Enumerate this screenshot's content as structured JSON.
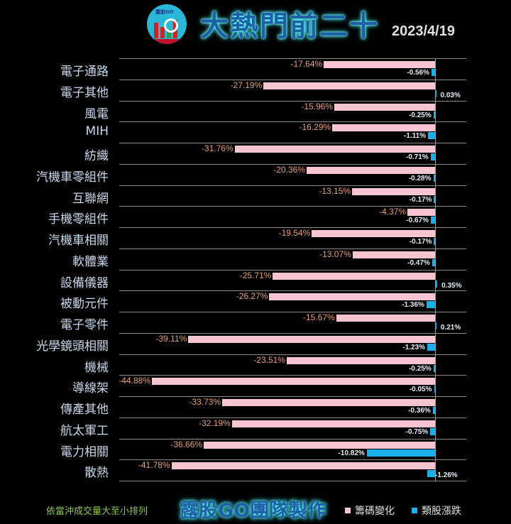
{
  "header": {
    "logo_text": "露股GO",
    "title": "大熱門前二十",
    "date": "2023/4/19"
  },
  "footer": {
    "sort_note": "依當沖成交量大至小排列",
    "brand": "露股GO團隊製作"
  },
  "legend": [
    {
      "label": "籌碼變化",
      "color": "#f7c4d2"
    },
    {
      "label": "類股漲跌",
      "color": "#19b0ea"
    }
  ],
  "chart_data": {
    "type": "bar",
    "orientation": "horizontal",
    "title": "大熱門前二十",
    "subtitle": "2023/4/19",
    "xlabel": "",
    "ylabel": "",
    "xlim": [
      -45,
      5
    ],
    "grid": true,
    "legend_position": "bottom-right",
    "categories": [
      "電子通路",
      "電子其他",
      "風電",
      "MIH",
      "紡織",
      "汽機車零組件",
      "互聯網",
      "手機零組件",
      "汽機車相關",
      "軟體業",
      "設備儀器",
      "被動元件",
      "電子零件",
      "光學鏡頭相關",
      "機械",
      "導線架",
      "傳產其他",
      "航太軍工",
      "電力相關",
      "散熱"
    ],
    "series": [
      {
        "name": "籌碼變化",
        "color": "#f7c4d2",
        "values": [
          -17.64,
          -27.19,
          -15.96,
          -16.29,
          -31.76,
          -20.36,
          -13.15,
          -4.37,
          -19.54,
          -13.07,
          -25.71,
          -26.27,
          -15.67,
          -39.11,
          -23.51,
          -44.88,
          -33.73,
          -32.19,
          -36.66,
          -41.78
        ],
        "labels": [
          "-17.64%",
          "-27.19%",
          "-15.96%",
          "-16.29%",
          "-31.76%",
          "-20.36%",
          "-13.15%",
          "-4.37%",
          "-19.54%",
          "-13.07%",
          "-25.71%",
          "-26.27%",
          "-15.67%",
          "-39.11%",
          "-23.51%",
          "-44.88%",
          "-33.73%",
          "-32.19%",
          "-36.66%",
          "-41.78%"
        ]
      },
      {
        "name": "類股漲跌",
        "color": "#19b0ea",
        "values": [
          -0.56,
          0.03,
          -0.25,
          -1.11,
          -0.71,
          -0.28,
          -0.17,
          -0.67,
          -0.17,
          -0.47,
          0.35,
          -1.36,
          0.21,
          -1.23,
          -0.25,
          -0.05,
          -0.36,
          -0.75,
          -10.82,
          -1.26
        ],
        "labels": [
          "-0.56%",
          "0.03%",
          "-0.25%",
          "-1.11%",
          "-0.71%",
          "-0.28%",
          "-0.17%",
          "-0.67%",
          "-0.17%",
          "-0.47%",
          "0.35%",
          "-1.36%",
          "0.21%",
          "-1.23%",
          "-0.25%",
          "-0.05%",
          "-0.36%",
          "-0.75%",
          "-10.82%",
          "-1.26%"
        ]
      }
    ]
  }
}
